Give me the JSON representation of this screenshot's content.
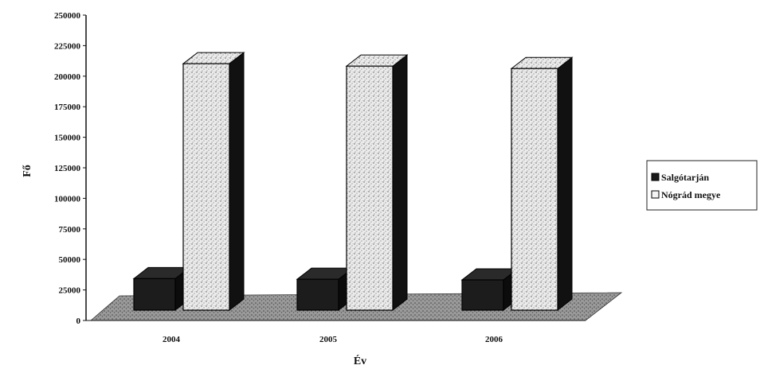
{
  "chart_data": {
    "type": "bar",
    "style": "3d-column",
    "title": "",
    "xlabel": "Év",
    "ylabel": "Fő",
    "ylim": [
      0,
      250000
    ],
    "yticks": [
      0,
      25000,
      50000,
      75000,
      100000,
      125000,
      150000,
      175000,
      200000,
      225000,
      250000
    ],
    "categories": [
      "2004",
      "2005",
      "2006"
    ],
    "series": [
      {
        "name": "Salgótarján",
        "values": [
          44000,
          43500,
          43000
        ],
        "color": "#1a1a1a"
      },
      {
        "name": "Nógrád megye",
        "values": [
          220000,
          218000,
          216000
        ],
        "color": "#e8e8e8"
      }
    ],
    "legend_position": "right",
    "grid": false
  }
}
